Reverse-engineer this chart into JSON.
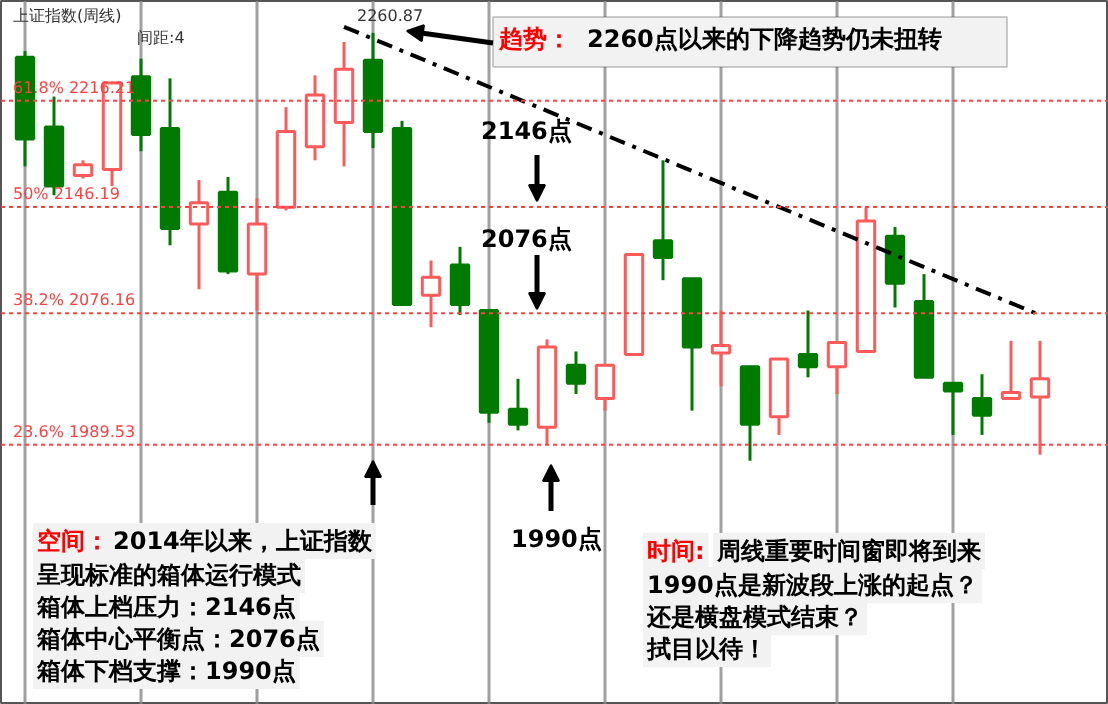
{
  "chart_data": {
    "type": "candlestick",
    "title": "上证指数(周线)",
    "categories": [
      null,
      null,
      null,
      null,
      null,
      null,
      null,
      null,
      null,
      null,
      null,
      null,
      null,
      null,
      null,
      null,
      null,
      null,
      null,
      null,
      null,
      null,
      null,
      null,
      null,
      null,
      null,
      null,
      null,
      null,
      null,
      null,
      null,
      null,
      null,
      null
    ],
    "ohlc": [
      [
        2245,
        2249,
        2173,
        2191
      ],
      [
        2199,
        2219,
        2154,
        2160
      ],
      [
        2167,
        2177,
        2165,
        2174
      ],
      [
        2171,
        2229,
        2160,
        2228
      ],
      [
        2232,
        2244,
        2183,
        2194
      ],
      [
        2198,
        2231,
        2121,
        2132
      ],
      [
        2135,
        2164,
        2092,
        2149
      ],
      [
        2156,
        2166,
        2102,
        2104
      ],
      [
        2102,
        2152,
        2078,
        2135
      ],
      [
        2146,
        2212,
        2144,
        2196
      ],
      [
        2186,
        2233,
        2177,
        2220
      ],
      [
        2202,
        2255,
        2173,
        2237
      ],
      [
        2243,
        2261,
        2185,
        2196
      ],
      [
        2198,
        2203,
        2082,
        2082
      ],
      [
        2088,
        2111,
        2067,
        2100
      ],
      [
        2108,
        2120,
        2075,
        2082
      ],
      [
        2078,
        2078,
        2004,
        2011
      ],
      [
        2013,
        2033,
        1999,
        2003
      ],
      [
        2001,
        2059,
        1990,
        2054
      ],
      [
        2042,
        2051,
        2023,
        2030
      ],
      [
        2020,
        2042,
        2012,
        2042
      ],
      [
        2049,
        2115,
        2049,
        2115
      ],
      [
        2124,
        2177,
        2098,
        2113
      ],
      [
        2099,
        2099,
        2012,
        2054
      ],
      [
        2050,
        2078,
        2028,
        2055
      ],
      [
        2041,
        2041,
        1979,
        2003
      ],
      [
        2008,
        2046,
        1996,
        2046
      ],
      [
        2049,
        2078,
        2034,
        2041
      ],
      [
        2041,
        2057,
        2023,
        2057
      ],
      [
        2051,
        2146,
        2051,
        2137
      ],
      [
        2127,
        2133,
        2080,
        2096
      ],
      [
        2084,
        2102,
        2034,
        2034
      ],
      [
        2030,
        2030,
        1996,
        2025
      ],
      [
        2020,
        2036,
        1996,
        2009
      ],
      [
        2020,
        2058,
        2020,
        2024
      ],
      [
        2021,
        2058,
        1983,
        2033
      ]
    ],
    "colors": [
      "#007a00",
      "#007a00",
      "#ff5a5a",
      "#ff5a5a",
      "#007a00",
      "#007a00",
      "#ff5a5a",
      "#007a00",
      "#ff5a5a",
      "#ff5a5a",
      "#ff5a5a",
      "#ff5a5a",
      "#007a00",
      "#007a00",
      "#ff5a5a",
      "#007a00",
      "#007a00",
      "#007a00",
      "#ff5a5a",
      "#007a00",
      "#ff5a5a",
      "#ff5a5a",
      "#007a00",
      "#007a00",
      "#ff5a5a",
      "#007a00",
      "#ff5a5a",
      "#007a00",
      "#ff5a5a",
      "#ff5a5a",
      "#007a00",
      "#007a00",
      "#007a00",
      "#007a00",
      "#ff5a5a",
      "#ff5a5a"
    ],
    "series": [
      {
        "type": "line",
        "color": "#000000",
        "line_style": "dashed",
        "values": [
          null,
          null,
          null,
          null,
          null,
          null,
          null,
          null,
          null,
          null,
          null,
          2265,
          null,
          null,
          null,
          null,
          null,
          null,
          null,
          null,
          null,
          null,
          null,
          null,
          null,
          null,
          null,
          null,
          null,
          null,
          null,
          null,
          null,
          null,
          null,
          2075
        ]
      }
    ],
    "ylim": [
      1818,
      2282
    ],
    "tick_labels": false,
    "grid": "x",
    "ref_lines": [
      {
        "axis": "y",
        "value": 2216.21,
        "label": "61.8% 2216.21",
        "color": "#ff4040",
        "line_style": "dotted"
      },
      {
        "axis": "y",
        "value": 2146.19,
        "label": "50% 2146.19",
        "color": "#ff4040",
        "line_style": "dotted"
      },
      {
        "axis": "y",
        "value": 2076.16,
        "label": "38.2% 2076.16",
        "color": "#ff4040",
        "line_style": "dotted"
      },
      {
        "axis": "y",
        "value": 1989.53,
        "label": "23.6% 1989.53",
        "color": "#ff4040",
        "line_style": "dotted"
      }
    ],
    "annotations": [
      "间距:4",
      "2260.87",
      "趋势：",
      "2260点以来的下降趋势仍未扭转",
      "2146点",
      "2076点",
      "1990点",
      "空间：",
      "2014年以来，上证指数",
      "呈现标准的箱体运行模式",
      "箱体上档压力：2146点",
      "箱体中心平衡点：2076点",
      "箱体下档支撑：1990点",
      "时间:",
      "周线重要时间窗即将到来",
      "1990点是新波段上涨的起点？",
      "还是横盘模式结束？",
      "拭目以待！"
    ]
  }
}
